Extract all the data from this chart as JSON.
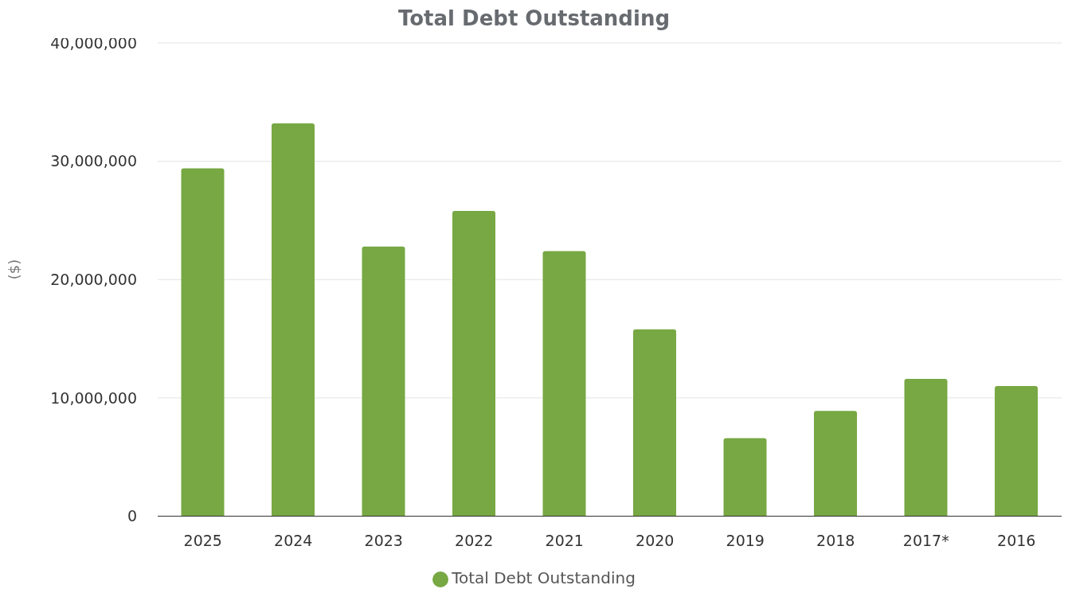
{
  "chart_data": {
    "type": "bar",
    "title": "Total Debt Outstanding",
    "ylabel": "($)",
    "categories": [
      "2025",
      "2024",
      "2023",
      "2022",
      "2021",
      "2020",
      "2019",
      "2018",
      "2017*",
      "2016"
    ],
    "series": [
      {
        "name": "Total Debt Outstanding",
        "color": "#77a843",
        "values": [
          29400000,
          33200000,
          22800000,
          25800000,
          22400000,
          15800000,
          6600000,
          8900000,
          11600000,
          11000000
        ]
      }
    ],
    "ylim": [
      0,
      40000000
    ],
    "yticks": [
      0,
      {
        "value": 10000000,
        "label": "10,000,000"
      },
      {
        "value": 20000000,
        "label": "20,000,000"
      },
      {
        "value": 30000000,
        "label": "30,000,000"
      },
      {
        "value": 40000000,
        "label": "40,000,000"
      }
    ],
    "grid": "y",
    "legend": "bottom"
  }
}
